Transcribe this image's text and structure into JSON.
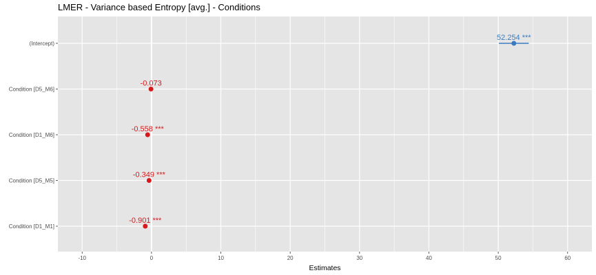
{
  "chart_data": {
    "type": "scatter",
    "title": "LMER - Variance based Entropy [avg.] - Conditions",
    "xlabel": "Estimates",
    "ylabel": "",
    "xlim": [
      -13.5,
      63.5
    ],
    "x_ticks": [
      "-10",
      "0",
      "10",
      "20",
      "30",
      "40",
      "50",
      "60"
    ],
    "x_tick_values": [
      -10,
      0,
      10,
      20,
      30,
      40,
      50,
      60
    ],
    "grid": true,
    "legend": "none",
    "categories": [
      "(Intercept)",
      "Condition [D5_M6]",
      "Condition [D1_M6]",
      "Condition [D5_M5]",
      "Condition [D1_M1]"
    ],
    "points": [
      {
        "term": "(Intercept)",
        "estimate": 52.254,
        "ci": [
          50.1,
          54.4
        ],
        "label": "52.254 ***",
        "color": "#3a7bbf"
      },
      {
        "term": "Condition [D5_M6]",
        "estimate": -0.073,
        "ci": null,
        "label": "-0.073",
        "color": "#d7191c"
      },
      {
        "term": "Condition [D1_M6]",
        "estimate": -0.558,
        "ci": null,
        "label": "-0.558 ***",
        "color": "#d7191c"
      },
      {
        "term": "Condition [D5_M5]",
        "estimate": -0.349,
        "ci": null,
        "label": "-0.349 ***",
        "color": "#d7191c"
      },
      {
        "term": "Condition [D1_M1]",
        "estimate": -0.901,
        "ci": null,
        "label": "-0.901 ***",
        "color": "#d7191c"
      }
    ],
    "colors": {
      "panel": "#e5e5e5",
      "grid": "#ffffff",
      "positive": "#3a7bbf",
      "negative": "#d7191c"
    }
  }
}
